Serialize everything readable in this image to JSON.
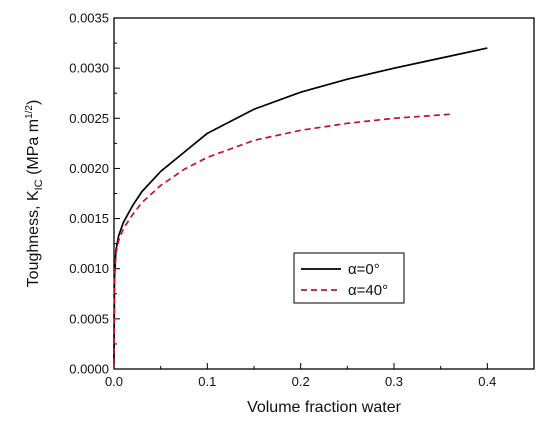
{
  "chart_data": {
    "type": "line",
    "xlabel": "Volume fraction water",
    "ylabel": {
      "main": "Toughness, K",
      "sub": "IC",
      "unit_open": " (MPa m",
      "unit_sup": "1/2",
      "unit_close": ")"
    },
    "xlim": [
      0.0,
      0.45
    ],
    "ylim": [
      0.0,
      0.0035
    ],
    "x_ticks": [
      "0.0",
      "0.1",
      "0.2",
      "0.3",
      "0.4"
    ],
    "x_tick_values": [
      0.0,
      0.1,
      0.2,
      0.3,
      0.4
    ],
    "y_ticks": [
      "0.0000",
      "0.0005",
      "0.0010",
      "0.0015",
      "0.0020",
      "0.0025",
      "0.0030",
      "0.0035"
    ],
    "y_tick_values": [
      0.0,
      0.0005,
      0.001,
      0.0015,
      0.002,
      0.0025,
      0.003,
      0.0035
    ],
    "grid": false,
    "legend_position": "lower-right",
    "series": [
      {
        "name": "α=0°",
        "color": "#000000",
        "style": "solid",
        "x": [
          0.0,
          0.0005,
          0.002,
          0.005,
          0.01,
          0.02,
          0.03,
          0.05,
          0.075,
          0.1,
          0.15,
          0.2,
          0.25,
          0.3,
          0.35,
          0.4
        ],
        "y": [
          5e-05,
          0.0009,
          0.00118,
          0.00133,
          0.00146,
          0.00163,
          0.00177,
          0.00197,
          0.00216,
          0.00235,
          0.00259,
          0.00276,
          0.00289,
          0.003,
          0.0031,
          0.0032
        ]
      },
      {
        "name": "α=40°",
        "color": "#c8102e",
        "style": "dashed",
        "x": [
          0.0,
          0.0005,
          0.002,
          0.005,
          0.01,
          0.02,
          0.03,
          0.05,
          0.075,
          0.1,
          0.15,
          0.2,
          0.25,
          0.3,
          0.36
        ],
        "y": [
          5e-05,
          0.0009,
          0.00115,
          0.00128,
          0.0014,
          0.00154,
          0.00166,
          0.00183,
          0.00199,
          0.00211,
          0.00228,
          0.00238,
          0.00245,
          0.0025,
          0.00254
        ]
      }
    ]
  }
}
